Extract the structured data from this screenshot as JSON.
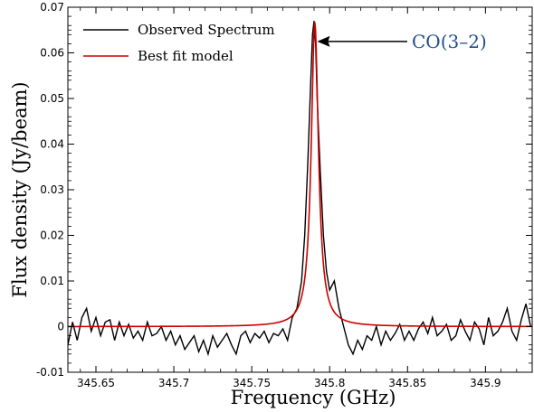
{
  "chart_data": {
    "type": "line",
    "title": "",
    "xlabel": "Frequency (GHz)",
    "ylabel": "Flux density (Jy/beam)",
    "xlim": [
      345.632,
      345.93
    ],
    "ylim": [
      -0.01,
      0.07
    ],
    "x_tick_labels": [
      "345.65",
      "345.7",
      "345.75",
      "345.8",
      "345.85",
      "345.9"
    ],
    "y_tick_labels": [
      "-0.01",
      "0",
      "0.01",
      "0.02",
      "0.03",
      "0.04",
      "0.05",
      "0.06",
      "0.07"
    ],
    "grid": false,
    "legend_position": "top-left",
    "series": [
      {
        "name": "Observed Spectrum",
        "color": "#000000",
        "x": [
          345.632,
          345.635,
          345.638,
          345.641,
          345.644,
          345.647,
          345.65,
          345.653,
          345.656,
          345.659,
          345.662,
          345.665,
          345.668,
          345.671,
          345.674,
          345.677,
          345.68,
          345.683,
          345.686,
          345.689,
          345.692,
          345.695,
          345.698,
          345.701,
          345.704,
          345.707,
          345.71,
          345.713,
          345.716,
          345.719,
          345.722,
          345.725,
          345.728,
          345.731,
          345.734,
          345.737,
          345.74,
          345.743,
          345.746,
          345.749,
          345.752,
          345.755,
          345.758,
          345.761,
          345.764,
          345.767,
          345.77,
          345.773,
          345.776,
          345.779,
          345.782,
          345.784,
          345.786,
          345.788,
          345.789,
          345.79,
          345.791,
          345.792,
          345.794,
          345.796,
          345.798,
          345.8,
          345.803,
          345.806,
          345.809,
          345.812,
          345.815,
          345.818,
          345.821,
          345.824,
          345.827,
          345.83,
          345.833,
          345.836,
          345.839,
          345.842,
          345.845,
          345.848,
          345.851,
          345.854,
          345.857,
          345.86,
          345.863,
          345.866,
          345.869,
          345.872,
          345.875,
          345.878,
          345.881,
          345.884,
          345.887,
          345.89,
          345.893,
          345.896,
          345.899,
          345.902,
          345.905,
          345.908,
          345.911,
          345.914,
          345.917,
          345.92,
          345.923,
          345.926,
          345.929
        ],
        "y": [
          -0.004,
          0.001,
          -0.003,
          0.002,
          0.004,
          -0.001,
          0.002,
          -0.002,
          0.001,
          0.0015,
          -0.003,
          0.001,
          -0.002,
          0.0005,
          -0.0025,
          -0.001,
          -0.003,
          0.001,
          -0.002,
          -0.0015,
          0.0,
          -0.003,
          -0.001,
          -0.004,
          -0.002,
          -0.005,
          -0.0035,
          -0.002,
          -0.0055,
          -0.003,
          -0.006,
          -0.002,
          -0.0045,
          -0.003,
          -0.0015,
          -0.004,
          -0.006,
          -0.002,
          -0.001,
          -0.0035,
          -0.0015,
          -0.0025,
          -0.001,
          -0.0035,
          -0.0015,
          -0.002,
          -0.0005,
          -0.003,
          0.002,
          0.004,
          0.01,
          0.02,
          0.036,
          0.055,
          0.064,
          0.067,
          0.062,
          0.05,
          0.034,
          0.02,
          0.012,
          0.008,
          0.01,
          0.004,
          0.0,
          -0.004,
          -0.006,
          -0.003,
          -0.005,
          -0.002,
          -0.003,
          0.0,
          -0.004,
          -0.001,
          -0.003,
          -0.0015,
          0.0005,
          -0.003,
          -0.001,
          -0.003,
          -0.0005,
          0.001,
          -0.0015,
          0.002,
          -0.002,
          -0.001,
          0.0005,
          -0.003,
          -0.002,
          0.0015,
          -0.001,
          -0.003,
          0.001,
          -0.0005,
          -0.004,
          0.002,
          -0.002,
          -0.001,
          0.001,
          0.004,
          -0.001,
          -0.003,
          0.0015,
          0.005,
          0.0
        ]
      },
      {
        "name": "Best fit model",
        "color": "#cc0000",
        "model": "lorentzian",
        "peak_x": 345.7905,
        "peak_y": 0.0668,
        "hwhm": 0.0028
      }
    ],
    "annotations": [
      {
        "text": "CO(3–2)",
        "color": "#1f4e8c",
        "arrow_to_x": 345.792,
        "arrow_to_y": 0.0625
      }
    ]
  }
}
